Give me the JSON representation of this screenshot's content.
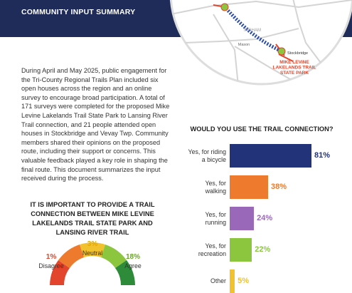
{
  "header": {
    "title": "COMMUNITY INPUT SUMMARY"
  },
  "map": {
    "labels": {
      "mason": "Mason",
      "ingham": "INGHAM",
      "stockbridge": "Stockbridge",
      "park": "MIKE LEVINE\nLAKELANDS TRAIL\nSTATE PARK"
    }
  },
  "intro": {
    "text": "During April and May 2025, public engagement for the Tri-County Regional Trails Plan included six open houses across the region and an online survey to encourage broad participation. A total of 171 surveys were completed for the proposed Mike Levine Lakelands Trail State Park to Lansing River Trail connection, and 21 people attended open houses in Stockbridge and Vevay Twp. Community members shared their opinions on the proposed route, including their support or concerns. This valuable feedback played a key role in shaping the final route. This document summarizes the input received during the process."
  },
  "gauge": {
    "title": "IT IS IMPORTANT TO PROVIDE A TRAIL CONNECTION BETWEEN MIKE LEVINE LAKELANDS TRAIL STATE PARK AND LANSING RIVER TRAIL",
    "items": [
      {
        "percent": "1%",
        "label": "Disagree"
      },
      {
        "percent": "3%",
        "label": "Neutral"
      },
      {
        "percent": "18%",
        "label": "Agree"
      }
    ]
  },
  "chart_data": {
    "type": "bar",
    "title": "WOULD YOU USE THE TRAIL CONNECTION?",
    "categories": [
      "Yes, for riding\na bicycle",
      "Yes, for\nwalking",
      "Yes, for\nrunning",
      "Yes, for\nrecreation",
      "Other"
    ],
    "values": [
      81,
      38,
      24,
      22,
      5
    ],
    "value_labels": [
      "81%",
      "38%",
      "24%",
      "22%",
      "5%"
    ],
    "colors": [
      "#22337a",
      "#ee7a2d",
      "#9a68b8",
      "#8cc63f",
      "#f2c12e"
    ]
  }
}
